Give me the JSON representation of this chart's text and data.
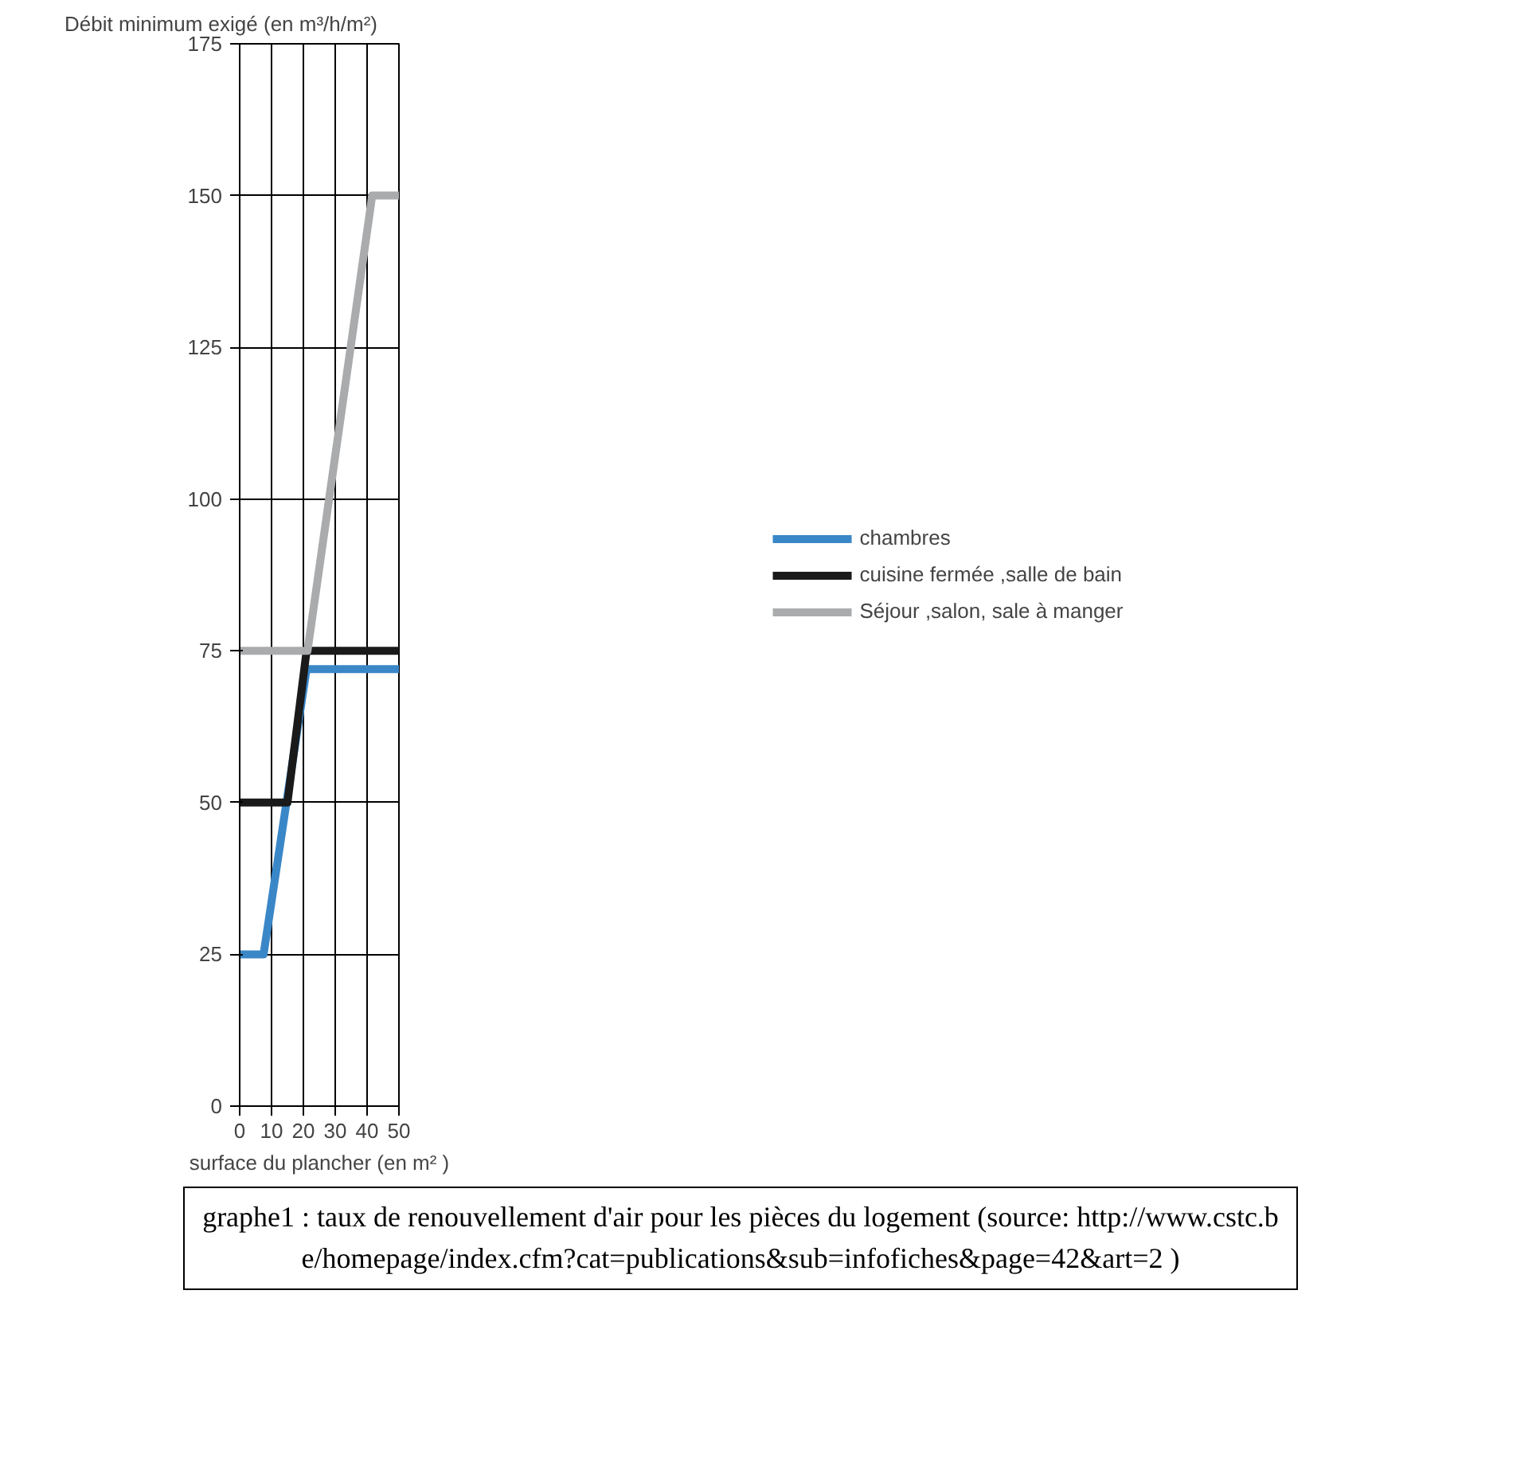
{
  "chart_data": {
    "type": "line",
    "ylabel": "Débit minimum exigé (en m³/h/m²)",
    "xlabel": "surface du plancher (en m² )",
    "xlim": [
      0,
      50
    ],
    "xticks": [
      0,
      10,
      20,
      30,
      40,
      50
    ],
    "ylim": [
      0,
      175
    ],
    "yticks": [
      0,
      25,
      50,
      75,
      100,
      125,
      150,
      175
    ],
    "grid": true,
    "legend": "right",
    "line_style": "solid",
    "marker": "none",
    "series": [
      {
        "name": "chambres",
        "color": "#3a87c8",
        "x": [
          0,
          7.5,
          21,
          50
        ],
        "values": [
          25,
          25,
          72,
          72
        ]
      },
      {
        "name": "cuisine fermée ,salle de bain",
        "color": "#1a1a1a",
        "x": [
          0,
          15,
          21,
          50
        ],
        "values": [
          50,
          50,
          75,
          75
        ]
      },
      {
        "name": "Séjour ,salon, sale à manger",
        "color": "#a9abad",
        "x": [
          0,
          21.3,
          41.6,
          50
        ],
        "values": [
          75,
          75,
          150,
          150
        ]
      }
    ],
    "annotations": [
      "graphe1 : taux de renouvellement d'air pour les  pièces du logement (source: http://www.cstc.be/homepage/index.cfm?cat=publications&sub=infofiches&page=42&art=2 )"
    ]
  }
}
